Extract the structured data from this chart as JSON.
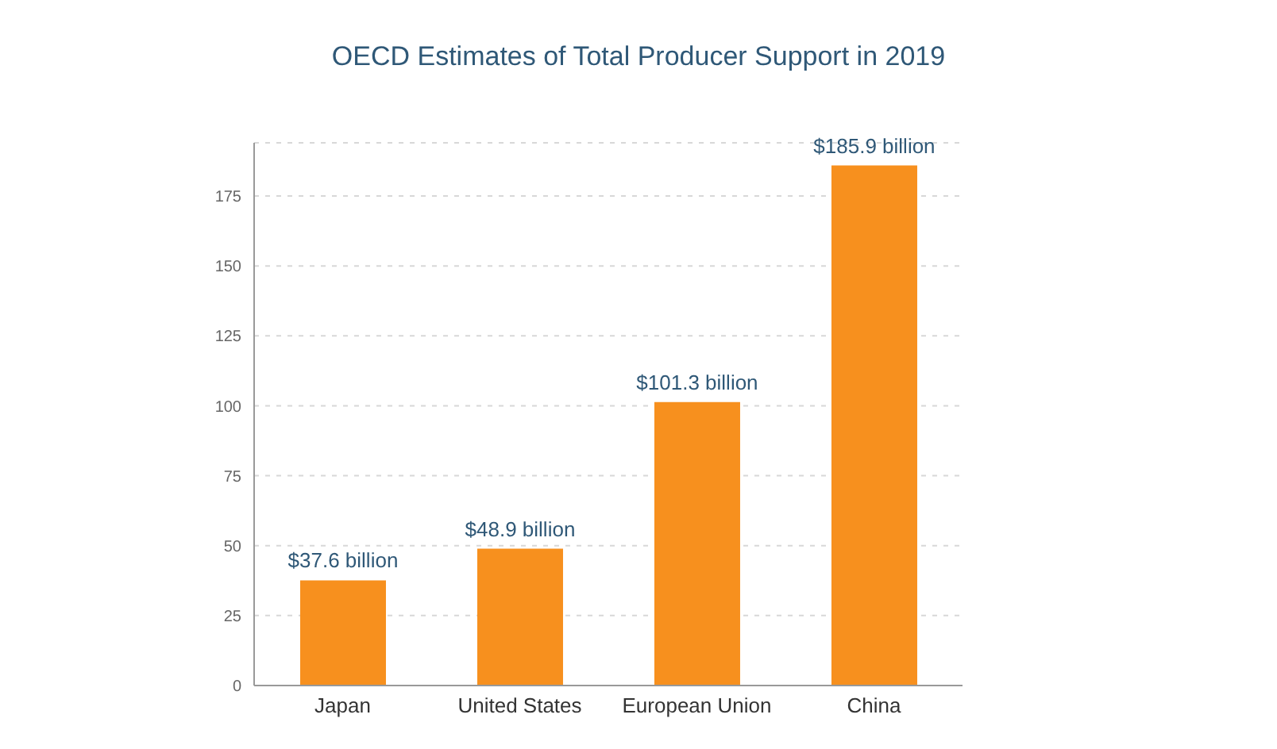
{
  "chart_data": {
    "type": "bar",
    "title": "OECD Estimates of Total Producer Support in 2019",
    "categories": [
      "Japan",
      "United States",
      "European Union",
      "China"
    ],
    "values": [
      37.6,
      48.9,
      101.3,
      185.9
    ],
    "value_labels": [
      "$37.6 billion",
      "$48.9 billion",
      "$101.3 billion",
      "$185.9 billion"
    ],
    "color": "#f7901e",
    "ylim": [
      0,
      194
    ],
    "yticks": [
      0,
      25,
      50,
      75,
      100,
      125,
      150,
      175
    ],
    "grid": "y"
  }
}
